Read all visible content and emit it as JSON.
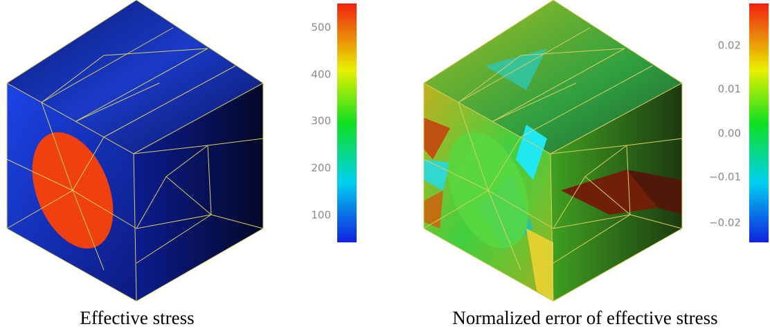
{
  "panels": [
    {
      "caption": "Effective stress",
      "colorbar": {
        "ticks": [
          "500",
          "400",
          "300",
          "200",
          "100"
        ]
      }
    },
    {
      "caption": "Normalized error of effective stress",
      "colorbar": {
        "ticks": [
          "0.02",
          "0.01",
          "0.00",
          "−0.01",
          "−0.02"
        ]
      }
    }
  ]
}
